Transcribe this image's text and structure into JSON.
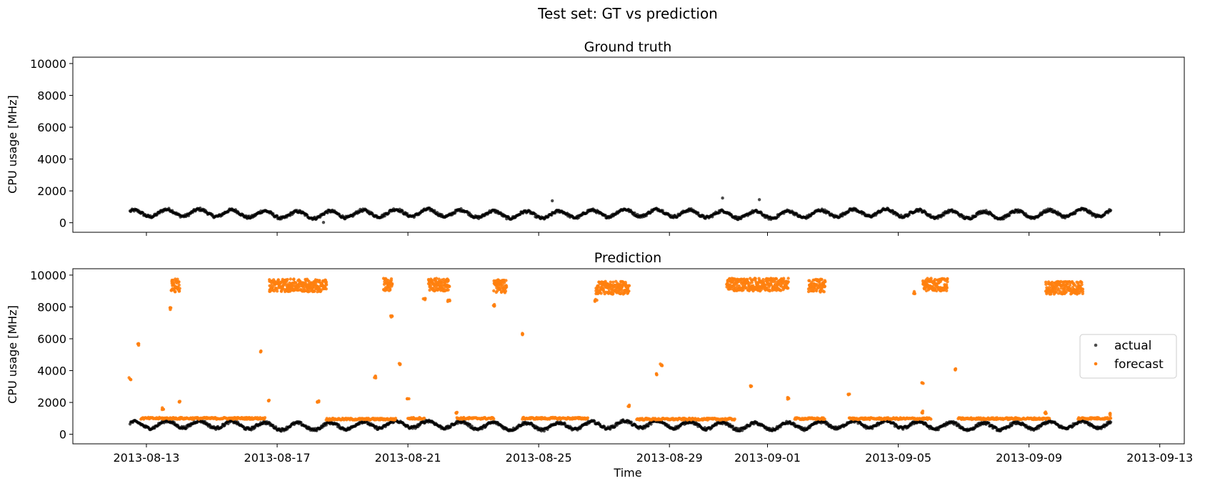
{
  "figure": {
    "suptitle": "Test set: GT vs prediction"
  },
  "colors": {
    "actual": "#000000",
    "forecast": "#ff7f0e"
  },
  "chart_data": [
    {
      "type": "scatter",
      "title": "Ground truth",
      "xlabel": "",
      "ylabel": "CPU usage [MHz]",
      "xlim": [
        "2013-08-10T18:00",
        "2013-09-13T18:00"
      ],
      "ylim": [
        -600,
        10400
      ],
      "yticks": [
        0,
        2000,
        4000,
        6000,
        8000,
        10000
      ],
      "xticks": [
        "2013-08-13",
        "2013-08-17",
        "2013-08-21",
        "2013-08-25",
        "2013-08-29",
        "2013-09-01",
        "2013-09-05",
        "2013-09-09",
        "2013-09-13"
      ],
      "xtick_labels_visible": false,
      "grid": false,
      "series": [
        {
          "key": "actual",
          "date_range": [
            "2013-08-12T12:00",
            "2013-09-11T12:00"
          ],
          "baseline_mhz": 560,
          "daily_amplitude_mhz": 220,
          "outliers": [
            {
              "x": "2013-08-25T10:00",
              "y": 1380
            },
            {
              "x": "2013-08-30T15:00",
              "y": 1550
            },
            {
              "x": "2013-08-31T18:00",
              "y": 1450
            },
            {
              "x": "2013-08-18T10:00",
              "y": 20
            }
          ]
        }
      ]
    },
    {
      "type": "scatter",
      "title": "Prediction",
      "xlabel": "Time",
      "ylabel": "CPU usage [MHz]",
      "xlim": [
        "2013-08-10T18:00",
        "2013-09-13T18:00"
      ],
      "ylim": [
        -600,
        10400
      ],
      "yticks": [
        0,
        2000,
        4000,
        6000,
        8000,
        10000
      ],
      "xticks": [
        "2013-08-13",
        "2013-08-17",
        "2013-08-21",
        "2013-08-25",
        "2013-08-29",
        "2013-09-01",
        "2013-09-05",
        "2013-09-09",
        "2013-09-13"
      ],
      "xtick_labels_visible": true,
      "grid": false,
      "legend": {
        "placement": "center-right"
      },
      "series": [
        {
          "name": "actual",
          "key": "actual",
          "date_range": [
            "2013-08-12T12:00",
            "2013-09-11T12:00"
          ],
          "baseline_mhz": 560,
          "daily_amplitude_mhz": 220
        },
        {
          "name": "forecast",
          "key": "forecast",
          "low_segments": [
            {
              "from": "2013-08-12T20:00",
              "to": "2013-08-16T15:00",
              "y": 1000
            },
            {
              "from": "2013-08-18T12:00",
              "to": "2013-08-20T15:00",
              "y": 950
            },
            {
              "from": "2013-08-21T00:00",
              "to": "2013-08-21T12:00",
              "y": 1000
            },
            {
              "from": "2013-08-22T12:00",
              "to": "2013-08-23T15:00",
              "y": 1000
            },
            {
              "from": "2013-08-24T12:00",
              "to": "2013-08-26T12:00",
              "y": 1000
            },
            {
              "from": "2013-08-28T00:00",
              "to": "2013-08-31T00:00",
              "y": 950
            },
            {
              "from": "2013-09-01T20:00",
              "to": "2013-09-02T18:00",
              "y": 980
            },
            {
              "from": "2013-09-03T12:00",
              "to": "2013-09-06T00:00",
              "y": 980
            },
            {
              "from": "2013-09-06T20:00",
              "to": "2013-09-09T15:00",
              "y": 980
            },
            {
              "from": "2013-09-10T12:00",
              "to": "2013-09-11T12:00",
              "y": 1000
            }
          ],
          "high_segments": [
            {
              "from": "2013-08-13T18:00",
              "to": "2013-08-14T00:00",
              "y": 9350
            },
            {
              "from": "2013-08-16T18:00",
              "to": "2013-08-18T12:00",
              "y": 9350
            },
            {
              "from": "2013-08-20T06:00",
              "to": "2013-08-20T12:00",
              "y": 9400
            },
            {
              "from": "2013-08-21T15:00",
              "to": "2013-08-22T06:00",
              "y": 9400
            },
            {
              "from": "2013-08-23T15:00",
              "to": "2013-08-24T00:00",
              "y": 9300
            },
            {
              "from": "2013-08-26T18:00",
              "to": "2013-08-27T18:00",
              "y": 9200
            },
            {
              "from": "2013-08-30T18:00",
              "to": "2013-09-01T15:00",
              "y": 9400
            },
            {
              "from": "2013-09-02T06:00",
              "to": "2013-09-02T18:00",
              "y": 9350
            },
            {
              "from": "2013-09-05T18:00",
              "to": "2013-09-06T12:00",
              "y": 9400
            },
            {
              "from": "2013-09-09T12:00",
              "to": "2013-09-10T15:00",
              "y": 9200
            }
          ],
          "isolated_points": [
            {
              "x": "2013-08-12T12:00",
              "y": 3500
            },
            {
              "x": "2013-08-12T18:00",
              "y": 5650
            },
            {
              "x": "2013-08-13T12:00",
              "y": 1600
            },
            {
              "x": "2013-08-13T18:00",
              "y": 7900
            },
            {
              "x": "2013-08-14T00:00",
              "y": 2000
            },
            {
              "x": "2013-08-16T12:00",
              "y": 5200
            },
            {
              "x": "2013-08-16T18:00",
              "y": 2100
            },
            {
              "x": "2013-08-18T06:00",
              "y": 2050
            },
            {
              "x": "2013-08-20T00:00",
              "y": 3600
            },
            {
              "x": "2013-08-20T12:00",
              "y": 7400
            },
            {
              "x": "2013-08-20T18:00",
              "y": 4400
            },
            {
              "x": "2013-08-21T00:00",
              "y": 2200
            },
            {
              "x": "2013-08-21T12:00",
              "y": 8500
            },
            {
              "x": "2013-08-22T06:00",
              "y": 8400
            },
            {
              "x": "2013-08-22T12:00",
              "y": 1350
            },
            {
              "x": "2013-08-23T15:00",
              "y": 8100
            },
            {
              "x": "2013-08-24T12:00",
              "y": 6300
            },
            {
              "x": "2013-08-26T18:00",
              "y": 8400
            },
            {
              "x": "2013-08-27T18:00",
              "y": 1800
            },
            {
              "x": "2013-08-28T18:00",
              "y": 4350
            },
            {
              "x": "2013-08-28T15:00",
              "y": 3800
            },
            {
              "x": "2013-08-31T12:00",
              "y": 3000
            },
            {
              "x": "2013-09-01T15:00",
              "y": 2250
            },
            {
              "x": "2013-09-02T15:00",
              "y": 9000
            },
            {
              "x": "2013-09-03T12:00",
              "y": 2500
            },
            {
              "x": "2013-09-05T12:00",
              "y": 8900
            },
            {
              "x": "2013-09-05T18:00",
              "y": 3250
            },
            {
              "x": "2013-09-05T18:00",
              "y": 1400
            },
            {
              "x": "2013-09-06T18:00",
              "y": 4100
            },
            {
              "x": "2013-09-09T12:00",
              "y": 1350
            },
            {
              "x": "2013-09-11T12:00",
              "y": 1250
            }
          ]
        }
      ]
    }
  ]
}
